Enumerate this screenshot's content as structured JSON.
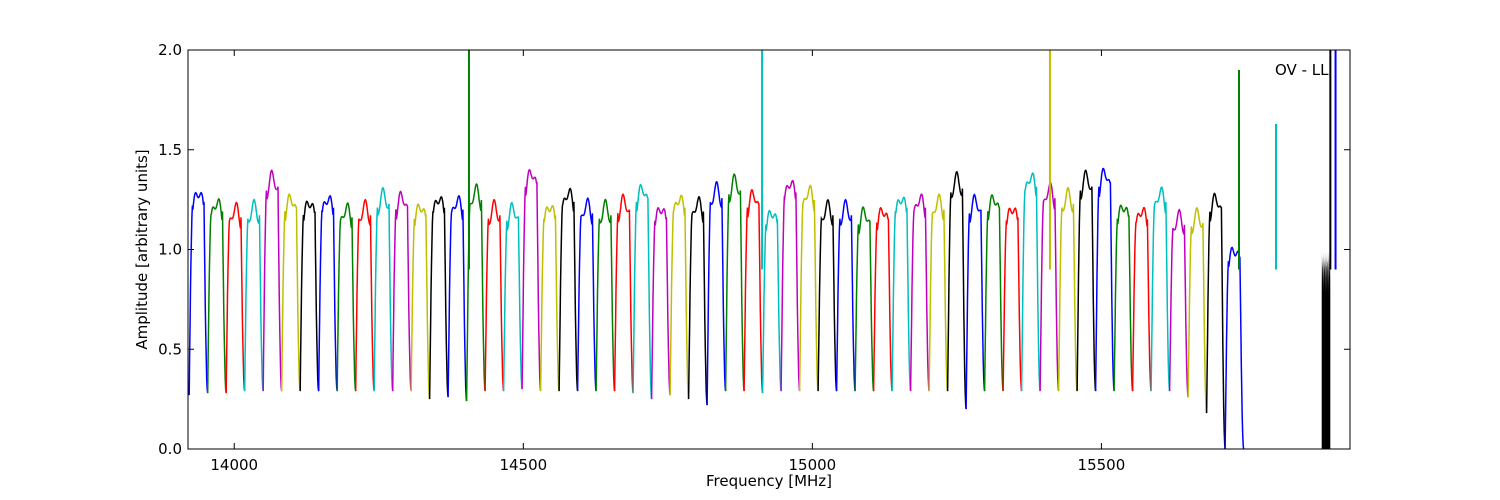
{
  "chart_data": {
    "type": "line",
    "title": "",
    "xlabel": "Frequency [MHz]",
    "ylabel": "Amplitude [arbitrary units]",
    "annotation": "OV - LL",
    "xlim": [
      13920,
      15930
    ],
    "ylim": [
      0.0,
      2.0
    ],
    "xticks": [
      14000,
      14500,
      15000,
      15500
    ],
    "xtick_labels": [
      "14000",
      "14500",
      "15000",
      "15500"
    ],
    "yticks": [
      0.0,
      0.5,
      1.0,
      1.5,
      2.0
    ],
    "ytick_labels": [
      "0.0",
      "0.5",
      "1.0",
      "1.5",
      "2.0"
    ],
    "grid": false,
    "legend": "none",
    "color_cycle": [
      "#0000ff",
      "#008000",
      "#ff0000",
      "#00bfbf",
      "#bf00bf",
      "#bfbf00",
      "#000000"
    ],
    "band_width_mhz": 32,
    "band_start_mhz": 13922,
    "band_peaks": [
      1.29,
      1.24,
      1.21,
      1.22,
      1.37,
      1.26,
      1.24,
      1.26,
      1.21,
      1.22,
      1.28,
      1.27,
      1.22,
      1.26,
      1.25,
      1.3,
      1.22,
      1.21,
      1.39,
      1.22,
      1.29,
      1.23,
      1.22,
      1.25,
      1.31,
      1.21,
      1.26,
      1.24,
      1.31,
      1.35,
      1.28,
      1.19,
      1.34,
      1.3,
      1.22,
      1.22,
      1.19,
      1.2,
      1.26,
      1.26,
      1.25,
      1.36,
      1.25,
      1.26,
      1.21,
      1.37,
      1.31,
      1.28,
      1.37,
      1.39,
      1.22,
      1.2,
      1.29,
      1.17,
      1.18,
      1.26,
      1.0
    ],
    "band_dips": [
      0.27,
      0.28,
      0.28,
      0.29,
      0.29,
      0.29,
      0.29,
      0.29,
      0.29,
      0.29,
      0.29,
      0.29,
      0.29,
      0.25,
      0.26,
      0.24,
      0.29,
      0.29,
      0.3,
      0.29,
      0.29,
      0.29,
      0.29,
      0.29,
      0.28,
      0.25,
      0.27,
      0.25,
      0.22,
      0.29,
      0.29,
      0.28,
      0.29,
      0.29,
      0.29,
      0.29,
      0.29,
      0.29,
      0.29,
      0.29,
      0.29,
      0.29,
      0.2,
      0.29,
      0.29,
      0.29,
      0.29,
      0.29,
      0.29,
      0.29,
      0.29,
      0.29,
      0.29,
      0.29,
      0.26,
      0.18,
      0.0
    ],
    "spikes": [
      {
        "x": 14406,
        "y": 2.0,
        "color": "#008000"
      },
      {
        "x": 14913,
        "y": 2.0,
        "color": "#00bfbf"
      },
      {
        "x": 15411,
        "y": 2.0,
        "color": "#bfbf00"
      },
      {
        "x": 15738,
        "y": 1.9,
        "color": "#008000"
      },
      {
        "x": 15802,
        "y": 1.63,
        "color": "#00bfbf"
      },
      {
        "x": 15896,
        "y": 2.0,
        "color": "#000000"
      },
      {
        "x": 15905,
        "y": 2.0,
        "color": "#0000ff"
      }
    ]
  }
}
